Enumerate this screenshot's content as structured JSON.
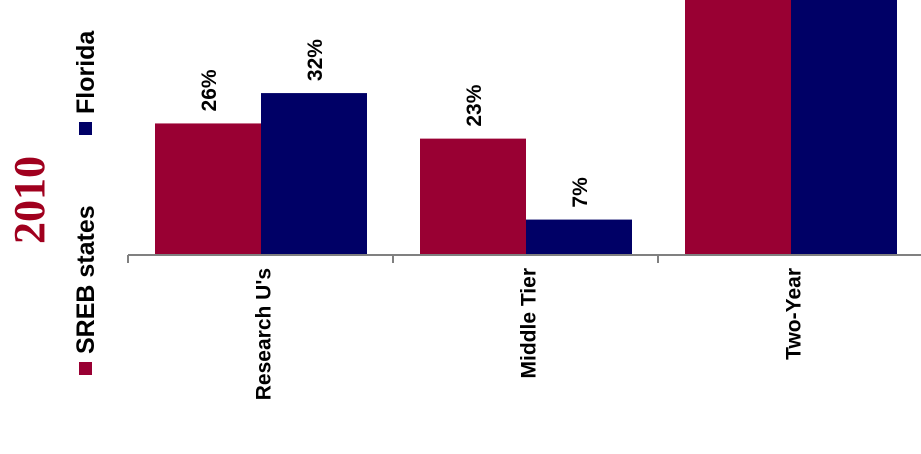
{
  "year_label": "2010",
  "colors": {
    "sreb": "#990033",
    "florida": "#000066",
    "year": "#A0001E",
    "axis": "#808080"
  },
  "chart_data": {
    "type": "bar",
    "categories": [
      "Research U's",
      "Middle Tier",
      "Two-Year"
    ],
    "series": [
      {
        "name": "SREB states",
        "values": [
          26,
          23,
          null
        ],
        "labels": [
          "26%",
          "23%",
          ""
        ]
      },
      {
        "name": "Florida",
        "values": [
          32,
          7,
          null
        ],
        "labels": [
          "32%",
          "7%",
          ""
        ]
      }
    ],
    "ylim": [
      0,
      50
    ],
    "legend_position": "left, rotated",
    "grid": false
  }
}
